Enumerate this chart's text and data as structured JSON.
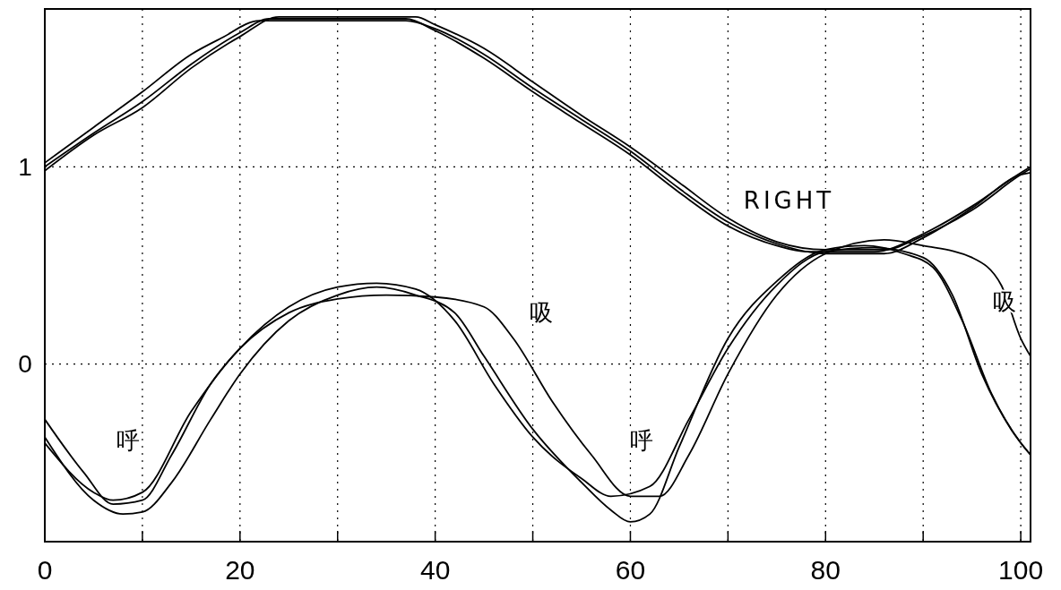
{
  "chart_data": {
    "type": "line",
    "xlim": [
      0,
      101
    ],
    "ylim": [
      -0.9,
      1.8
    ],
    "xticks": [
      0,
      {
        "value": 10,
        "label": null
      },
      20,
      {
        "value": 30,
        "label": null
      },
      40,
      {
        "value": 50,
        "label": null
      },
      60,
      {
        "value": 70,
        "label": null
      },
      80,
      {
        "value": 90,
        "label": null
      },
      100
    ],
    "yticks": [
      0,
      1
    ],
    "grid": true,
    "marker": "none",
    "line_style": "solid",
    "annotations": [
      "RIGHT",
      "呼",
      "呼",
      "吸",
      "吸"
    ],
    "series": [
      {
        "color": "#000000",
        "x": [
          0,
          5,
          10,
          15,
          20,
          23,
          37,
          40,
          45,
          50,
          55,
          60,
          65,
          70,
          75,
          78,
          85,
          90,
          95,
          100,
          101
        ],
        "values": [
          1.0,
          1.17,
          1.33,
          1.52,
          1.68,
          1.75,
          1.75,
          1.69,
          1.55,
          1.38,
          1.22,
          1.06,
          0.87,
          0.7,
          0.6,
          0.57,
          0.57,
          0.66,
          0.8,
          0.97,
          1.0
        ]
      },
      {
        "color": "#000000",
        "x": [
          0,
          5,
          10,
          15,
          18,
          22,
          37,
          40,
          45,
          50,
          55,
          60,
          65,
          70,
          75,
          80,
          86,
          90,
          95,
          100,
          101
        ],
        "values": [
          1.02,
          1.2,
          1.38,
          1.57,
          1.65,
          1.74,
          1.74,
          1.7,
          1.57,
          1.4,
          1.24,
          1.08,
          0.89,
          0.72,
          0.61,
          0.56,
          0.56,
          0.64,
          0.79,
          0.96,
          0.97
        ]
      },
      {
        "color": "#000000",
        "x": [
          0,
          5,
          10,
          15,
          20,
          24,
          38,
          40,
          45,
          50,
          55,
          60,
          65,
          70,
          75,
          80,
          86,
          90,
          95,
          100,
          101
        ],
        "values": [
          0.98,
          1.16,
          1.3,
          1.5,
          1.66,
          1.76,
          1.76,
          1.72,
          1.6,
          1.43,
          1.26,
          1.1,
          0.92,
          0.74,
          0.62,
          0.58,
          0.58,
          0.65,
          0.78,
          0.96,
          0.99
        ]
      },
      {
        "color": "#000000",
        "x": [
          0,
          5,
          8,
          10,
          13,
          17,
          20,
          25,
          30,
          34,
          38,
          42,
          45,
          50,
          55,
          58,
          60,
          62,
          65,
          70,
          75,
          80,
          84,
          88,
          91,
          94,
          97,
          100,
          101
        ],
        "values": [
          -0.37,
          -0.69,
          -0.76,
          -0.75,
          -0.6,
          -0.28,
          -0.05,
          0.22,
          0.35,
          0.39,
          0.35,
          0.26,
          0.04,
          -0.33,
          -0.6,
          -0.74,
          -0.8,
          -0.76,
          -0.42,
          0.13,
          0.42,
          0.58,
          0.6,
          0.56,
          0.49,
          0.22,
          -0.15,
          -0.4,
          -0.46
        ]
      },
      {
        "color": "#000000",
        "x": [
          0,
          5,
          7,
          10,
          15,
          20,
          25,
          30,
          35,
          40,
          45,
          48,
          52,
          56,
          60,
          63,
          66,
          70,
          75,
          80,
          86,
          90,
          95,
          98,
          100,
          101
        ],
        "values": [
          -0.4,
          -0.65,
          -0.69,
          -0.65,
          -0.24,
          0.08,
          0.26,
          0.33,
          0.35,
          0.34,
          0.29,
          0.13,
          -0.19,
          -0.46,
          -0.67,
          -0.67,
          -0.46,
          -0.05,
          0.35,
          0.56,
          0.63,
          0.6,
          0.54,
          0.4,
          0.13,
          0.04
        ]
      },
      {
        "color": "#000000",
        "x": [
          0,
          4,
          7,
          10,
          13,
          17,
          20,
          25,
          30,
          34,
          38,
          42,
          46,
          50,
          55,
          58,
          62,
          66,
          70,
          75,
          80,
          85,
          90,
          93,
          96,
          99,
          101
        ],
        "values": [
          -0.28,
          -0.55,
          -0.71,
          -0.69,
          -0.46,
          -0.1,
          0.08,
          0.29,
          0.39,
          0.41,
          0.38,
          0.22,
          -0.1,
          -0.37,
          -0.58,
          -0.67,
          -0.62,
          -0.28,
          0.08,
          0.4,
          0.57,
          0.59,
          0.54,
          0.35,
          -0.05,
          -0.33,
          -0.46
        ]
      }
    ]
  }
}
